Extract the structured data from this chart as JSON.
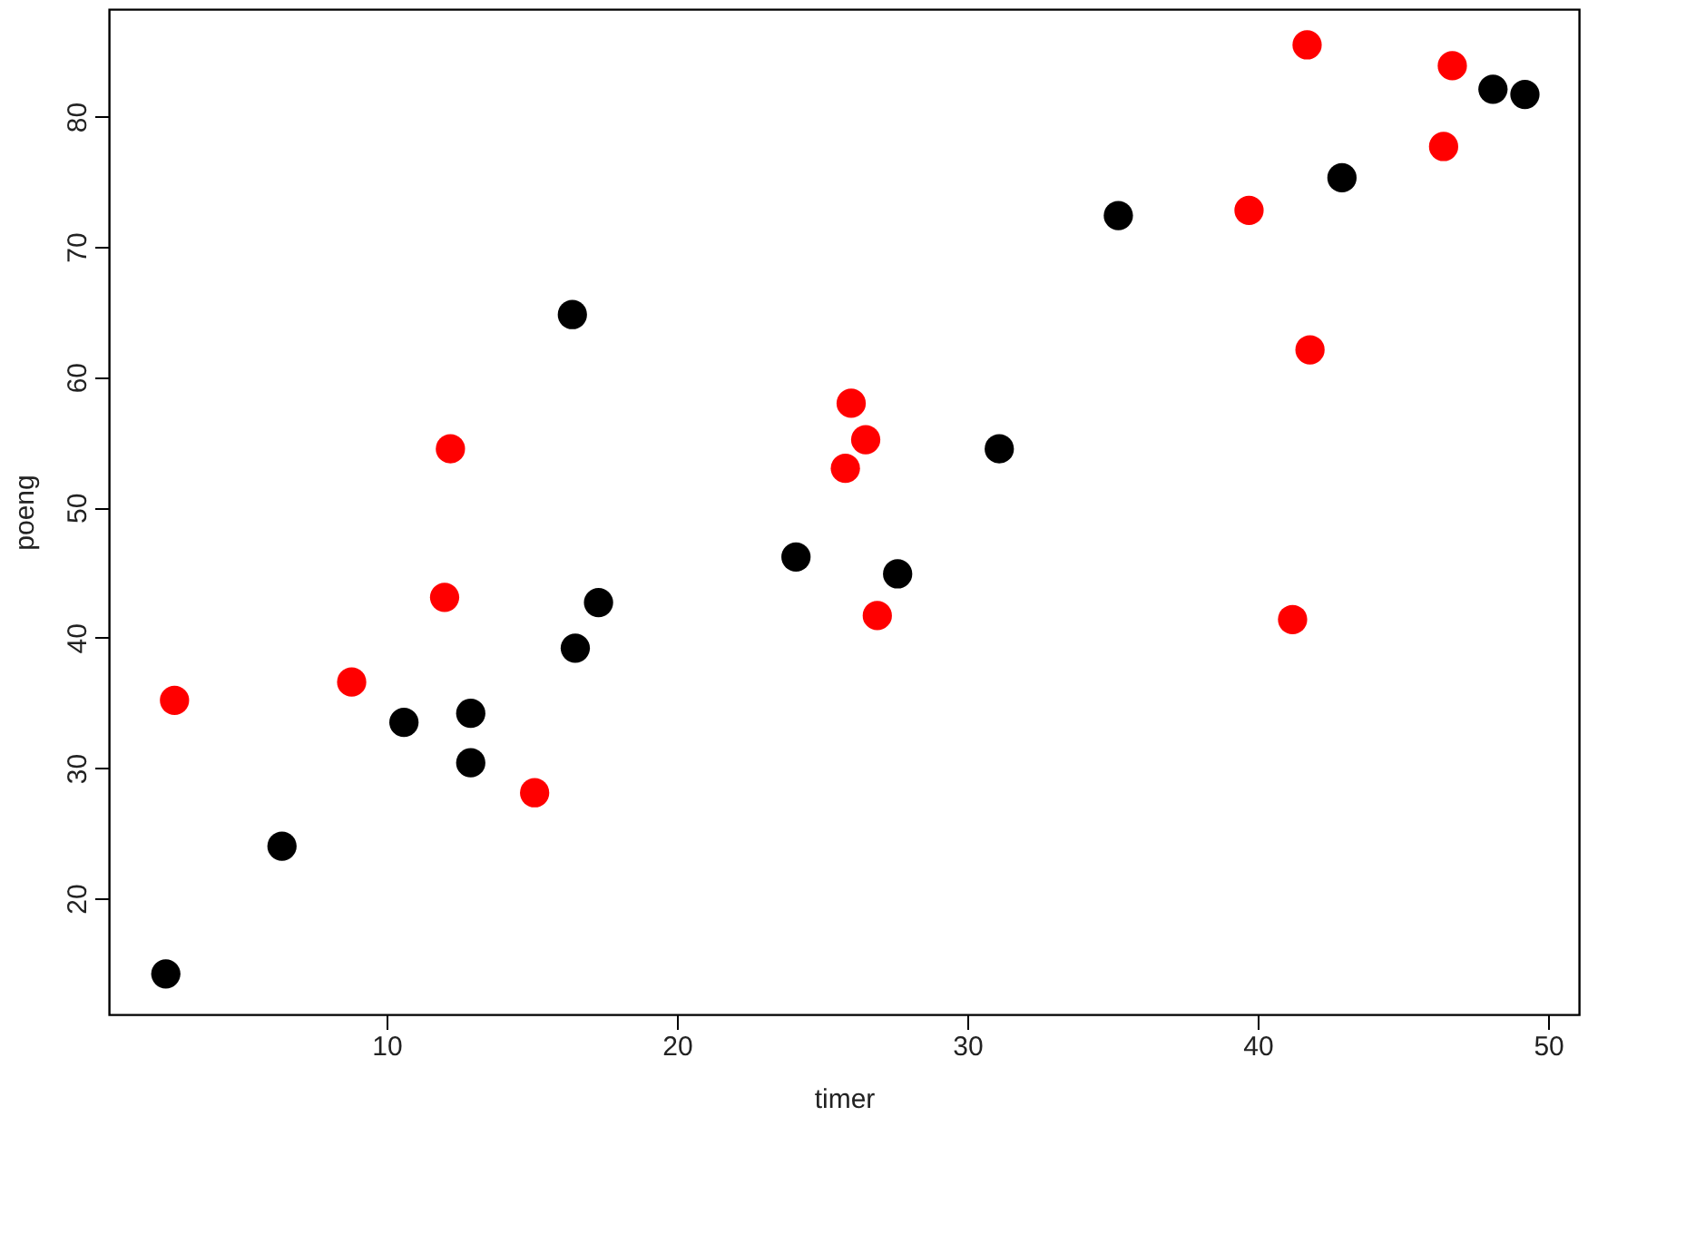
{
  "chart_data": {
    "type": "scatter",
    "xlabel": "timer",
    "ylabel": "poeng",
    "xlim": [
      0.44,
      51.06
    ],
    "ylim": [
      11.09,
      88.25
    ],
    "xticks": [
      10,
      20,
      30,
      40,
      50
    ],
    "yticks": [
      20,
      30,
      40,
      50,
      60,
      70,
      80
    ],
    "grid": false,
    "legend": false,
    "marker": "circle",
    "series": [
      {
        "color": "#000000",
        "x": [
          2.4,
          6.4,
          10.6,
          12.9,
          12.9,
          16.5,
          17.3,
          16.4,
          24.1,
          27.6,
          31.1,
          35.2,
          42.9,
          48.1,
          49.2
        ],
        "values": [
          14.2,
          24.0,
          33.5,
          34.2,
          30.4,
          39.2,
          42.7,
          64.8,
          46.2,
          44.9,
          54.5,
          72.4,
          75.3,
          82.1,
          81.7
        ]
      },
      {
        "color": "#ff0000",
        "x": [
          2.7,
          8.8,
          12.0,
          12.2,
          15.1,
          25.8,
          26.0,
          26.5,
          26.9,
          39.7,
          41.7,
          41.8,
          41.2,
          46.4,
          46.7
        ],
        "values": [
          35.2,
          36.6,
          43.1,
          54.5,
          28.1,
          53.0,
          58.0,
          55.2,
          41.7,
          72.8,
          85.5,
          62.1,
          41.4,
          77.7,
          83.9
        ]
      }
    ]
  }
}
